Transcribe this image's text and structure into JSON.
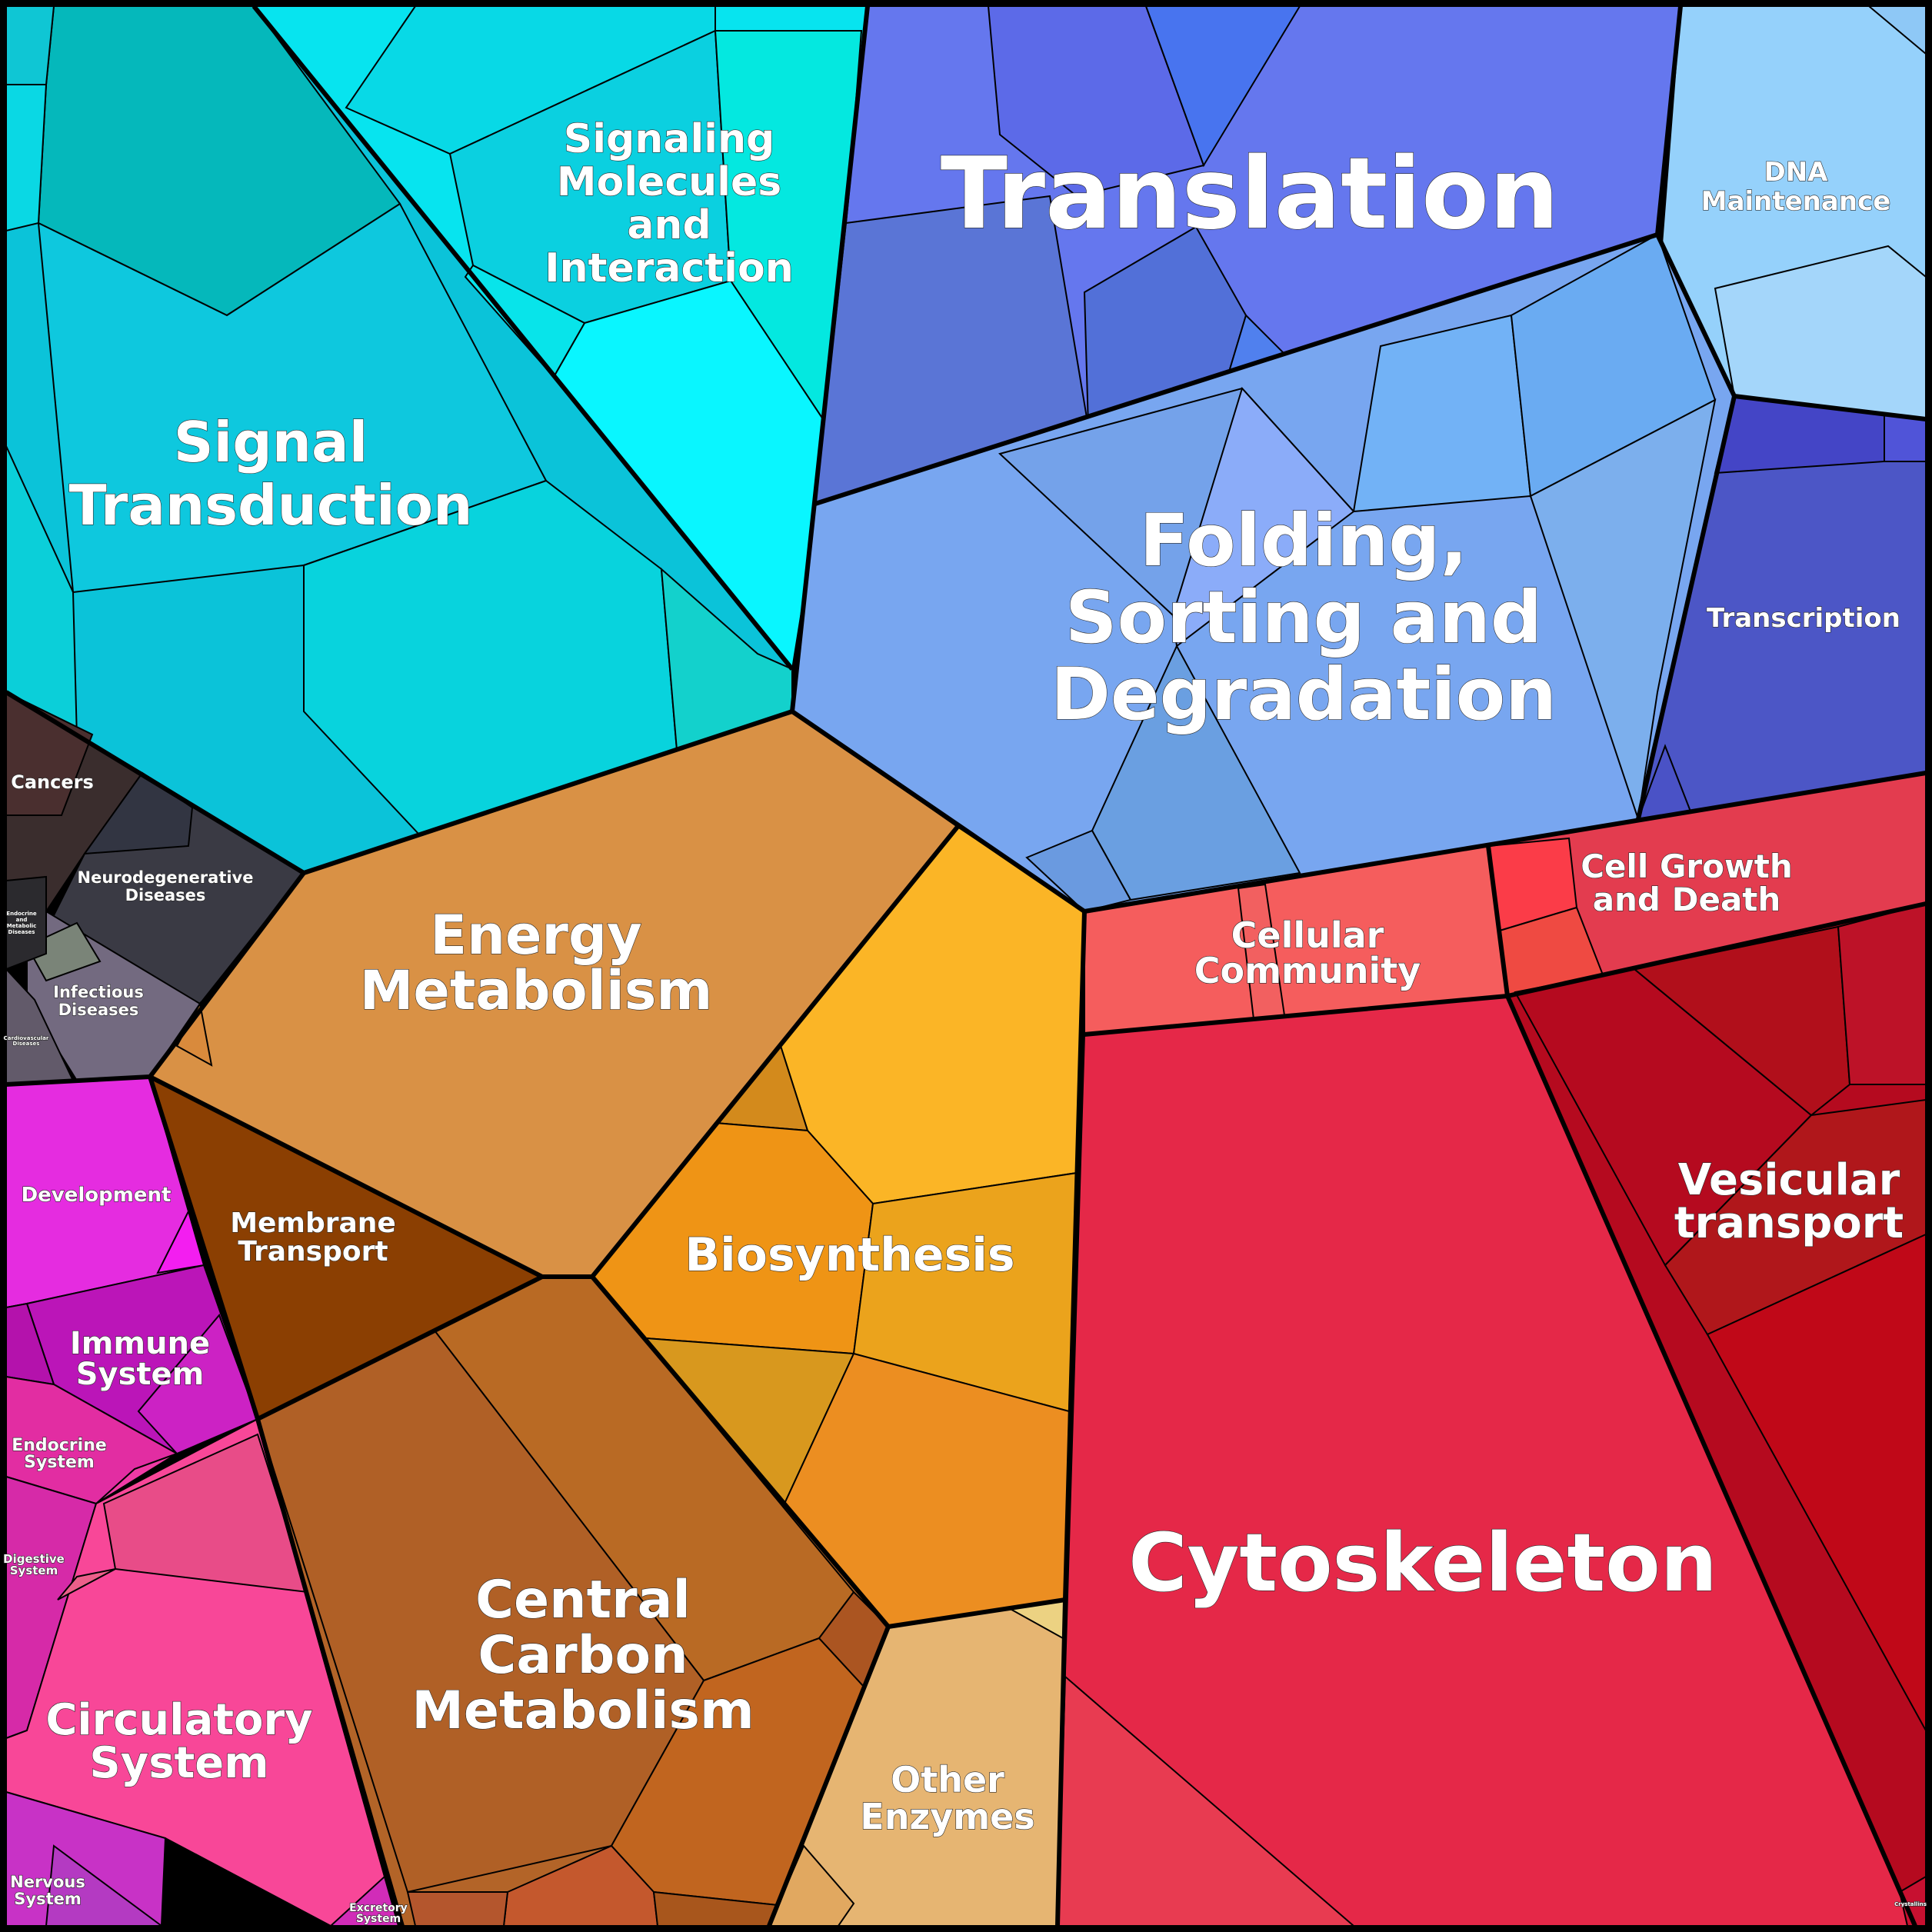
{
  "colors": {
    "signal": "#0bc3d9",
    "signaling": "#07e4ef",
    "translation": "#6577ee",
    "dna": "#95d1fb",
    "folding": "#78a6f0",
    "transcription": "#4c56c6",
    "cancers": "#3a2d2d",
    "neuro": "#3a3a44",
    "infectious": "#736a80",
    "energy": "#d99145",
    "biosynthesis": "#f09c24",
    "membrane": "#8b3f02",
    "carbon": "#b36428",
    "enzymes": "#e6b572",
    "development": "#e52ce0",
    "immune": "#bb15b8",
    "endocrine": "#e22da2",
    "circulatory": "#f84798",
    "cytoskeleton": "#e52848",
    "cellular": "#f55d5d",
    "growth": "#e33c4f",
    "vesicular": "#b50a1f"
  },
  "regions": {
    "signal_transduction": {
      "label": [
        "Signal",
        "Transduction"
      ]
    },
    "signaling_molecules": {
      "label": [
        "Signaling",
        "Molecules",
        "and",
        "Interaction"
      ]
    },
    "translation": {
      "label": [
        "Translation"
      ]
    },
    "dna_maintenance": {
      "label": [
        "DNA",
        "Maintenance"
      ]
    },
    "folding": {
      "label": [
        "Folding,",
        "Sorting and",
        "Degradation"
      ]
    },
    "transcription": {
      "label": [
        "Transcription"
      ]
    },
    "cancers": {
      "label": [
        "Cancers"
      ]
    },
    "neurodegenerative": {
      "label": [
        "Neurodegenerative",
        "Diseases"
      ]
    },
    "infectious": {
      "label": [
        "Infectious",
        "Diseases"
      ]
    },
    "endocrine_metabolic": {
      "label": [
        "Endocrine",
        "and",
        "Metabolic",
        "Diseases"
      ]
    },
    "cardiovascular": {
      "label": [
        "Cardiovascular",
        "Diseases"
      ]
    },
    "energy": {
      "label": [
        "Energy",
        "Metabolism"
      ]
    },
    "biosynthesis": {
      "label": [
        "Biosynthesis"
      ]
    },
    "membrane": {
      "label": [
        "Membrane",
        "Transport"
      ]
    },
    "central_carbon": {
      "label": [
        "Central",
        "Carbon",
        "Metabolism"
      ]
    },
    "other_enzymes": {
      "label": [
        "Other",
        "Enzymes"
      ]
    },
    "development": {
      "label": [
        "Development"
      ]
    },
    "immune": {
      "label": [
        "Immune",
        "System"
      ]
    },
    "endocrine_system": {
      "label": [
        "Endocrine",
        "System"
      ]
    },
    "digestive": {
      "label": [
        "Digestive",
        "System"
      ]
    },
    "circulatory": {
      "label": [
        "Circulatory",
        "System"
      ]
    },
    "nervous": {
      "label": [
        "Nervous",
        "System"
      ]
    },
    "excretory": {
      "label": [
        "Excretory",
        "System"
      ]
    },
    "cytoskeleton": {
      "label": [
        "Cytoskeleton"
      ]
    },
    "cellular_community": {
      "label": [
        "Cellular",
        "Community"
      ]
    },
    "cell_growth": {
      "label": [
        "Cell Growth",
        "and Death"
      ]
    },
    "vesicular": {
      "label": [
        "Vesicular",
        "transport"
      ]
    },
    "crystallins": {
      "label": [
        "Crystallins"
      ]
    }
  }
}
